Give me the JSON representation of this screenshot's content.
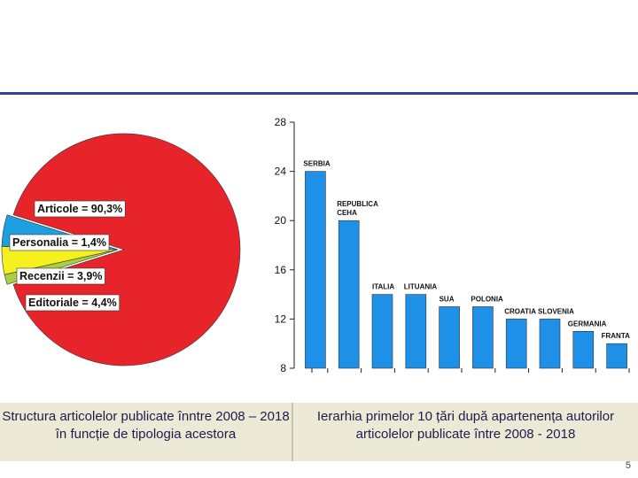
{
  "chart_data": [
    {
      "type": "pie",
      "slices": [
        {
          "label": "Articole = 90,3%",
          "value": 90.3,
          "color": "#e8242b"
        },
        {
          "label": "Personalia = 1,4%",
          "value": 1.4,
          "color": "#a9d13f"
        },
        {
          "label": "Recenzii = 3,9%",
          "value": 3.9,
          "color": "#f5f01e"
        },
        {
          "label": "Editoriale = 4,4%",
          "value": 4.4,
          "color": "#1e9fe0"
        }
      ]
    },
    {
      "type": "bar",
      "categories": [
        "SERBIA",
        "REPUBLICA CEHA",
        "ITALIA",
        "LITUANIA",
        "SUA",
        "POLONIA",
        "CROATIA",
        "SLOVENIA",
        "GERMANIA",
        "FRANTA"
      ],
      "values": [
        24,
        20,
        14,
        14,
        13,
        13,
        12,
        12,
        11,
        10
      ],
      "ylim": [
        8,
        28
      ],
      "yticks": [
        "8",
        "12",
        "16",
        "20",
        "24",
        "28"
      ],
      "bar_color": "#1e90e8"
    }
  ],
  "captions": {
    "left": "Structura articolelor publicate înntre 2008 – 2018 în funcție de tipologia acestora",
    "right": "Ierarhia primelor 10 țări după apartenența autorilor articolelor publicate între 2008 - 2018"
  },
  "page_number": "5"
}
